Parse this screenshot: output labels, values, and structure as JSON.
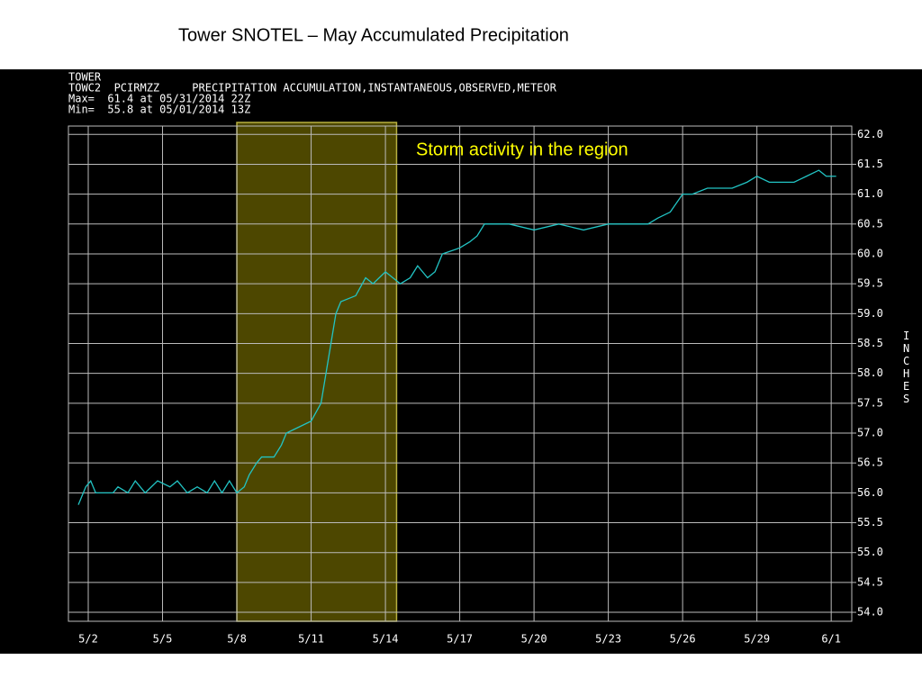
{
  "chart_data": {
    "type": "line",
    "title": "Tower SNOTEL – May Accumulated Precipitation",
    "header_lines": [
      "TOWER",
      "TOWC2  PCIRMZZ     PRECIPITATION ACCUMULATION,INSTANTANEOUS,OBSERVED,METEOR",
      "Max=  61.4 at 05/31/2014 22Z",
      "Min=  55.8 at 05/01/2014 13Z"
    ],
    "y_label": "INCHES",
    "annotation": "Storm activity in the region",
    "highlight": {
      "x": [
        8,
        14.45
      ],
      "color": "#4d4700",
      "edge": "#b8b040"
    },
    "color": "#22c4c4",
    "grid": true,
    "x": [
      1.6,
      1.9,
      2.1,
      2.3,
      3.0,
      3.2,
      3.6,
      3.9,
      4.3,
      4.8,
      5.3,
      5.6,
      6.0,
      6.4,
      6.8,
      7.1,
      7.4,
      7.7,
      8.0,
      8.3,
      8.5,
      8.8,
      9.0,
      9.5,
      9.8,
      10.0,
      10.5,
      11.0,
      11.4,
      11.6,
      11.8,
      12.0,
      12.2,
      12.8,
      13.2,
      13.5,
      14.0,
      14.3,
      14.6,
      15.0,
      15.3,
      15.7,
      16.0,
      16.3,
      17.0,
      17.4,
      17.7,
      18.0,
      19.0,
      20.0,
      21.0,
      22.0,
      23.0,
      24.0,
      24.6,
      25.0,
      25.5,
      26.0,
      26.4,
      27.0,
      28.0,
      28.6,
      29.0,
      29.5,
      30.5,
      31.0,
      31.5,
      31.8,
      32.2
    ],
    "values": [
      55.8,
      56.1,
      56.2,
      56.0,
      56.0,
      56.1,
      56.0,
      56.2,
      56.0,
      56.2,
      56.1,
      56.2,
      56.0,
      56.1,
      56.0,
      56.2,
      56.0,
      56.2,
      56.0,
      56.1,
      56.3,
      56.5,
      56.6,
      56.6,
      56.8,
      57.0,
      57.1,
      57.2,
      57.5,
      58.0,
      58.5,
      59.0,
      59.2,
      59.3,
      59.6,
      59.5,
      59.7,
      59.6,
      59.5,
      59.6,
      59.8,
      59.6,
      59.7,
      60.0,
      60.1,
      60.2,
      60.3,
      60.5,
      60.5,
      60.4,
      60.5,
      60.4,
      60.5,
      60.5,
      60.5,
      60.6,
      60.7,
      61.0,
      61.0,
      61.1,
      61.1,
      61.2,
      61.3,
      61.2,
      61.2,
      61.3,
      61.4,
      61.3,
      61.3
    ],
    "xlim": [
      1.2,
      32.83
    ],
    "xticks": [
      {
        "value": 2,
        "label": "5/2"
      },
      {
        "value": 5,
        "label": "5/5"
      },
      {
        "value": 8,
        "label": "5/8"
      },
      {
        "value": 11,
        "label": "5/11"
      },
      {
        "value": 14,
        "label": "5/14"
      },
      {
        "value": 17,
        "label": "5/17"
      },
      {
        "value": 20,
        "label": "5/20"
      },
      {
        "value": 23,
        "label": "5/23"
      },
      {
        "value": 26,
        "label": "5/26"
      },
      {
        "value": 29,
        "label": "5/29"
      },
      {
        "value": 32,
        "label": "6/1"
      }
    ],
    "ylim": [
      53.85,
      62.14
    ],
    "yticks": [
      {
        "value": 62,
        "label": "62.0"
      },
      {
        "value": 61.5,
        "label": "61.5"
      },
      {
        "value": 61,
        "label": "61.0"
      },
      {
        "value": 60.5,
        "label": "60.5"
      },
      {
        "value": 60,
        "label": "60.0"
      },
      {
        "value": 59.5,
        "label": "59.5"
      },
      {
        "value": 59,
        "label": "59.0"
      },
      {
        "value": 58.5,
        "label": "58.5"
      },
      {
        "value": 58,
        "label": "58.0"
      },
      {
        "value": 57.5,
        "label": "57.5"
      },
      {
        "value": 57,
        "label": "57.0"
      },
      {
        "value": 56.5,
        "label": "56.5"
      },
      {
        "value": 56,
        "label": "56.0"
      },
      {
        "value": 55.5,
        "label": "55.5"
      },
      {
        "value": 55,
        "label": "55.0"
      },
      {
        "value": 54.5,
        "label": "54.5"
      },
      {
        "value": 54,
        "label": "54.0"
      }
    ]
  }
}
